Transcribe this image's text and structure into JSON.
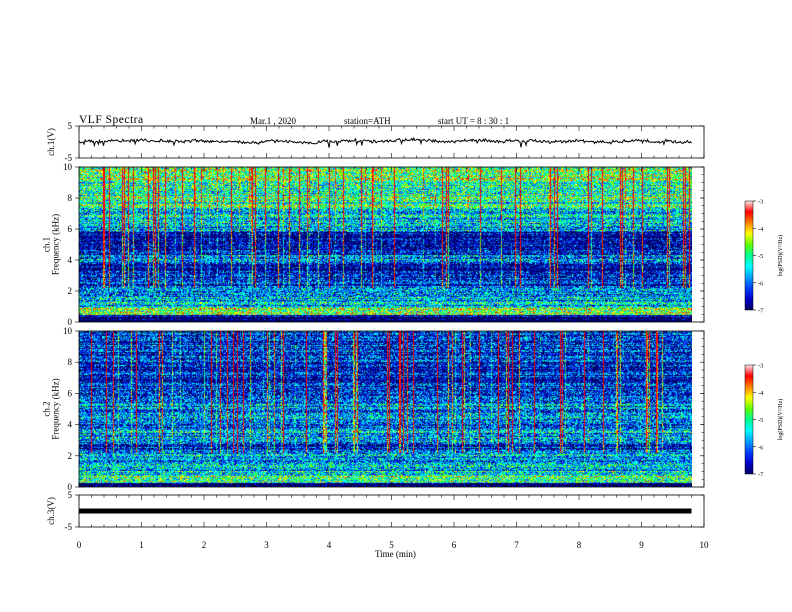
{
  "header": {
    "title": "VLF Spectra",
    "date": "Mar.1 , 2020",
    "station": "station=ATH",
    "start_ut": "start UT = 8 : 30 : 1"
  },
  "colors": {
    "spectrum": [
      "#000060",
      "#0000c8",
      "#0040ff",
      "#00a0ff",
      "#00ffff",
      "#00ff90",
      "#60ff00",
      "#ffff00",
      "#ff8000",
      "#ff0000",
      "#ffe8e8"
    ],
    "trace": "#000000"
  },
  "chart_data": [
    {
      "name_on_chart": "ch.1(V)",
      "type": "line",
      "ylabel": "ch.1(V)",
      "ylim": [
        -5,
        5
      ],
      "yticks": [
        5,
        -5
      ],
      "x_range_min": [
        0,
        9.8
      ],
      "typical_value": 0.2,
      "fluctuation": 0.8
    },
    {
      "type": "heatmap",
      "ylabel": "ch.1\nFrequency (kHz)",
      "ylim": [
        0,
        10
      ],
      "yticks": [
        0,
        2,
        4,
        6,
        8,
        10
      ],
      "x_range_min": [
        0,
        9.8
      ],
      "colorbar": {
        "label": "log(PSD)(V²/Hz)",
        "range": [
          -7,
          -3
        ],
        "ticks": [
          -3,
          -4,
          -5,
          -6,
          -7
        ]
      }
    },
    {
      "type": "heatmap",
      "ylabel": "ch.2\nFrequency (kHz)",
      "ylim": [
        0,
        10
      ],
      "yticks": [
        0,
        2,
        4,
        6,
        8,
        10
      ],
      "x_range_min": [
        0,
        9.8
      ],
      "colorbar": {
        "label": "log(PSD)(V²/Hz)",
        "range": [
          -7,
          -3
        ],
        "ticks": [
          -3,
          -4,
          -5,
          -6,
          -7
        ]
      }
    },
    {
      "type": "line",
      "ylabel": "ch.3(V)",
      "ylim": [
        -5,
        5
      ],
      "yticks": [
        5,
        -5
      ],
      "x_range_min": [
        0,
        9.8
      ],
      "typical_value": 0.0,
      "fluctuation": 0.0
    }
  ],
  "xaxis": {
    "label": "Time (min)",
    "range": [
      0,
      10
    ],
    "ticks": [
      0,
      1,
      2,
      3,
      4,
      5,
      6,
      7,
      8,
      9,
      10
    ]
  }
}
